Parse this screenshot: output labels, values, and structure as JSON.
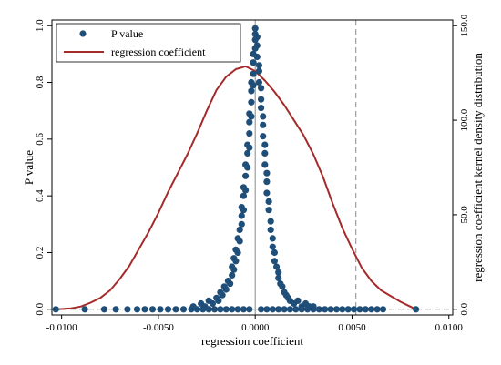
{
  "chart_data": {
    "type": "scatter",
    "xlabel": "regression coefficient",
    "ylabel": "P value",
    "ylabel_right": "regression coefficient kernel density distribution",
    "xlim": [
      -0.0105,
      0.0102
    ],
    "ylim": [
      -0.02,
      1.02
    ],
    "ylim_right": [
      -3.0,
      153.0
    ],
    "x_ticks": [
      -0.01,
      -0.005,
      0.0,
      0.005,
      0.01
    ],
    "x_tick_labels": [
      "-0.0100",
      "-0.0050",
      "0.0000",
      "0.0050",
      "0.0100"
    ],
    "y_ticks": [
      0.0,
      0.2,
      0.4,
      0.6,
      0.8,
      1.0
    ],
    "y_tick_labels": [
      "0.0",
      "0.2",
      "0.4",
      "0.6",
      "0.8",
      "1.0"
    ],
    "y_right_ticks": [
      0,
      50,
      100,
      150
    ],
    "y_right_tick_labels": [
      "0.0",
      "50.0",
      "100.0",
      "150.0"
    ],
    "reference_lines": {
      "x": [
        0.0,
        0.0052
      ],
      "y": [
        0.0
      ]
    },
    "legend": {
      "position": "top-left",
      "entries": [
        "P value",
        "regression coefficient"
      ]
    },
    "series": [
      {
        "name": "P value",
        "kind": "scatter",
        "color": "#1f4e79",
        "points": [
          [
            -0.0103,
            0.0
          ],
          [
            -0.0088,
            0.0
          ],
          [
            -0.0078,
            0.0
          ],
          [
            -0.0072,
            0.0
          ],
          [
            -0.0066,
            0.0
          ],
          [
            -0.0061,
            0.0
          ],
          [
            -0.0057,
            0.0
          ],
          [
            -0.0053,
            0.0
          ],
          [
            -0.0049,
            0.0
          ],
          [
            -0.0045,
            0.0
          ],
          [
            -0.0041,
            0.0
          ],
          [
            -0.0037,
            0.0
          ],
          [
            -0.0033,
            0.0
          ],
          [
            -0.003,
            0.0
          ],
          [
            -0.0027,
            0.0
          ],
          [
            -0.0024,
            0.0
          ],
          [
            -0.0021,
            0.0
          ],
          [
            -0.0018,
            0.0
          ],
          [
            -0.0015,
            0.0
          ],
          [
            -0.0012,
            0.0
          ],
          [
            -0.0009,
            0.0
          ],
          [
            -0.0006,
            0.0
          ],
          [
            -0.0003,
            0.0
          ],
          [
            0.0003,
            0.0
          ],
          [
            0.0006,
            0.0
          ],
          [
            0.0009,
            0.0
          ],
          [
            0.0012,
            0.0
          ],
          [
            0.0015,
            0.0
          ],
          [
            0.0018,
            0.0
          ],
          [
            0.0021,
            0.0
          ],
          [
            0.0024,
            0.0
          ],
          [
            0.0027,
            0.0
          ],
          [
            0.003,
            0.0
          ],
          [
            0.0033,
            0.0
          ],
          [
            0.0036,
            0.0
          ],
          [
            0.0039,
            0.0
          ],
          [
            0.0042,
            0.0
          ],
          [
            0.0045,
            0.0
          ],
          [
            0.0048,
            0.0
          ],
          [
            0.0051,
            0.0
          ],
          [
            0.0054,
            0.0
          ],
          [
            0.0057,
            0.0
          ],
          [
            0.006,
            0.0
          ],
          [
            0.0063,
            0.0
          ],
          [
            0.0066,
            0.0
          ],
          [
            0.0083,
            0.0
          ],
          [
            -0.0032,
            0.01
          ],
          [
            -0.0028,
            0.02
          ],
          [
            -0.0026,
            0.01
          ],
          [
            -0.0024,
            0.03
          ],
          [
            -0.0022,
            0.02
          ],
          [
            -0.002,
            0.04
          ],
          [
            -0.0019,
            0.03
          ],
          [
            -0.0018,
            0.06
          ],
          [
            -0.0017,
            0.05
          ],
          [
            -0.0016,
            0.08
          ],
          [
            -0.0015,
            0.07
          ],
          [
            -0.0014,
            0.1
          ],
          [
            -0.0013,
            0.09
          ],
          [
            -0.0012,
            0.12
          ],
          [
            -0.0012,
            0.15
          ],
          [
            -0.0011,
            0.14
          ],
          [
            -0.0011,
            0.18
          ],
          [
            -0.001,
            0.17
          ],
          [
            -0.001,
            0.21
          ],
          [
            -0.0009,
            0.2
          ],
          [
            -0.0009,
            0.25
          ],
          [
            -0.0008,
            0.24
          ],
          [
            -0.0008,
            0.28
          ],
          [
            -0.0007,
            0.3
          ],
          [
            -0.0007,
            0.33
          ],
          [
            -0.0007,
            0.36
          ],
          [
            -0.0006,
            0.35
          ],
          [
            -0.0006,
            0.4
          ],
          [
            -0.0006,
            0.43
          ],
          [
            -0.0005,
            0.42
          ],
          [
            -0.0005,
            0.47
          ],
          [
            -0.0005,
            0.51
          ],
          [
            -0.0004,
            0.5
          ],
          [
            -0.0004,
            0.55
          ],
          [
            -0.0004,
            0.58
          ],
          [
            -0.0003,
            0.57
          ],
          [
            -0.0003,
            0.62
          ],
          [
            -0.0003,
            0.66
          ],
          [
            -0.0003,
            0.69
          ],
          [
            -0.0002,
            0.68
          ],
          [
            -0.0002,
            0.73
          ],
          [
            -0.0002,
            0.77
          ],
          [
            -0.0002,
            0.8
          ],
          [
            -0.0001,
            0.79
          ],
          [
            -0.0001,
            0.83
          ],
          [
            -0.0001,
            0.87
          ],
          [
            -0.0001,
            0.9
          ],
          [
            0.0,
            0.92
          ],
          [
            0.0,
            0.95
          ],
          [
            0.0,
            0.97
          ],
          [
            0.0,
            0.99
          ],
          [
            0.0001,
            0.96
          ],
          [
            0.0001,
            0.93
          ],
          [
            0.0001,
            0.89
          ],
          [
            0.0002,
            0.86
          ],
          [
            0.0002,
            0.84
          ],
          [
            0.0002,
            0.8
          ],
          [
            0.0003,
            0.78
          ],
          [
            0.0003,
            0.74
          ],
          [
            0.0003,
            0.71
          ],
          [
            0.0004,
            0.68
          ],
          [
            0.0004,
            0.65
          ],
          [
            0.0004,
            0.61
          ],
          [
            0.0005,
            0.58
          ],
          [
            0.0005,
            0.55
          ],
          [
            0.0005,
            0.51
          ],
          [
            0.0006,
            0.48
          ],
          [
            0.0006,
            0.45
          ],
          [
            0.0006,
            0.41
          ],
          [
            0.0007,
            0.38
          ],
          [
            0.0007,
            0.35
          ],
          [
            0.0008,
            0.31
          ],
          [
            0.0008,
            0.28
          ],
          [
            0.0009,
            0.25
          ],
          [
            0.0009,
            0.22
          ],
          [
            0.001,
            0.2
          ],
          [
            0.001,
            0.17
          ],
          [
            0.0011,
            0.15
          ],
          [
            0.0012,
            0.13
          ],
          [
            0.0012,
            0.11
          ],
          [
            0.0013,
            0.09
          ],
          [
            0.0014,
            0.08
          ],
          [
            0.0015,
            0.06
          ],
          [
            0.0016,
            0.05
          ],
          [
            0.0017,
            0.04
          ],
          [
            0.0018,
            0.03
          ],
          [
            0.002,
            0.02
          ],
          [
            0.0022,
            0.03
          ],
          [
            0.0024,
            0.01
          ],
          [
            0.0026,
            0.02
          ],
          [
            0.0028,
            0.01
          ],
          [
            0.003,
            0.01
          ]
        ]
      },
      {
        "name": "regression coefficient",
        "kind": "line",
        "color": "#a52a2a",
        "points": [
          [
            -0.0102,
            0.0
          ],
          [
            -0.0095,
            0.5
          ],
          [
            -0.009,
            1.5
          ],
          [
            -0.0085,
            3.5
          ],
          [
            -0.008,
            6.0
          ],
          [
            -0.0075,
            10.0
          ],
          [
            -0.007,
            16.0
          ],
          [
            -0.0065,
            23.0
          ],
          [
            -0.006,
            32.0
          ],
          [
            -0.0055,
            41.0
          ],
          [
            -0.005,
            51.0
          ],
          [
            -0.0045,
            62.0
          ],
          [
            -0.004,
            72.0
          ],
          [
            -0.0035,
            82.0
          ],
          [
            -0.003,
            93.0
          ],
          [
            -0.0025,
            105.0
          ],
          [
            -0.002,
            116.0
          ],
          [
            -0.0015,
            123.0
          ],
          [
            -0.001,
            127.0
          ],
          [
            -0.0005,
            128.5
          ],
          [
            0.0,
            126.0
          ],
          [
            0.0005,
            121.0
          ],
          [
            0.001,
            115.0
          ],
          [
            0.0015,
            108.0
          ],
          [
            0.002,
            100.0
          ],
          [
            0.0025,
            92.0
          ],
          [
            0.003,
            82.0
          ],
          [
            0.0035,
            70.0
          ],
          [
            0.004,
            56.0
          ],
          [
            0.0045,
            43.0
          ],
          [
            0.005,
            32.0
          ],
          [
            0.0055,
            22.0
          ],
          [
            0.006,
            15.0
          ],
          [
            0.0065,
            10.0
          ],
          [
            0.007,
            7.0
          ],
          [
            0.0075,
            4.0
          ],
          [
            0.008,
            1.5
          ],
          [
            0.0083,
            0.0
          ]
        ]
      }
    ]
  }
}
